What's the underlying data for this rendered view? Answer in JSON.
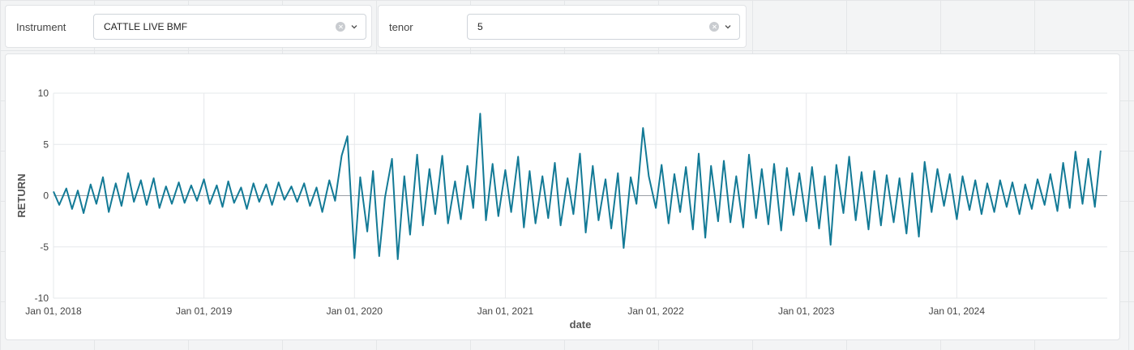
{
  "filters": {
    "instrument": {
      "label": "Instrument",
      "value": "CATTLE LIVE BMF"
    },
    "tenor": {
      "label": "tenor",
      "value": "5"
    }
  },
  "colors": {
    "series": "#137a96",
    "grid": "#e6e8eb",
    "zero_line": "#9aa0a6"
  },
  "chart_data": {
    "type": "line",
    "xlabel": "date",
    "ylabel": "RETURN",
    "ylim": [
      -10,
      10
    ],
    "yticks": [
      -10,
      -5,
      0,
      5,
      10
    ],
    "xlim": [
      "2018-01-01",
      "2024-12-31"
    ],
    "xticks": [
      {
        "date": "2018-01-01",
        "label": "Jan 01, 2018"
      },
      {
        "date": "2019-01-01",
        "label": "Jan 01, 2019"
      },
      {
        "date": "2020-01-01",
        "label": "Jan 01, 2020"
      },
      {
        "date": "2021-01-01",
        "label": "Jan 01, 2021"
      },
      {
        "date": "2022-01-01",
        "label": "Jan 01, 2022"
      },
      {
        "date": "2023-01-01",
        "label": "Jan 01, 2023"
      },
      {
        "date": "2024-01-01",
        "label": "Jan 01, 2024"
      }
    ],
    "grid": true,
    "series": [
      {
        "x": [
          "2018-01-01",
          "2018-01-15",
          "2018-02-01",
          "2018-02-15",
          "2018-03-01",
          "2018-03-15",
          "2018-04-01",
          "2018-04-15",
          "2018-05-01",
          "2018-05-15",
          "2018-06-01",
          "2018-06-15",
          "2018-07-01",
          "2018-07-15",
          "2018-08-01",
          "2018-08-15",
          "2018-09-01",
          "2018-09-15",
          "2018-10-01",
          "2018-10-15",
          "2018-11-01",
          "2018-11-15",
          "2018-12-01",
          "2018-12-15",
          "2019-01-01",
          "2019-01-15",
          "2019-02-01",
          "2019-02-15",
          "2019-03-01",
          "2019-03-15",
          "2019-04-01",
          "2019-04-15",
          "2019-05-01",
          "2019-05-15",
          "2019-06-01",
          "2019-06-15",
          "2019-07-01",
          "2019-07-15",
          "2019-08-01",
          "2019-08-15",
          "2019-09-01",
          "2019-09-15",
          "2019-10-01",
          "2019-10-15",
          "2019-11-01",
          "2019-11-15",
          "2019-12-01",
          "2019-12-15",
          "2020-01-01",
          "2020-01-15",
          "2020-02-01",
          "2020-02-15",
          "2020-03-01",
          "2020-03-15",
          "2020-04-01",
          "2020-04-15",
          "2020-05-01",
          "2020-05-15",
          "2020-06-01",
          "2020-06-15",
          "2020-07-01",
          "2020-07-15",
          "2020-08-01",
          "2020-08-15",
          "2020-09-01",
          "2020-09-15",
          "2020-10-01",
          "2020-10-15",
          "2020-11-01",
          "2020-11-15",
          "2020-12-01",
          "2020-12-15",
          "2021-01-01",
          "2021-01-15",
          "2021-02-01",
          "2021-02-15",
          "2021-03-01",
          "2021-03-15",
          "2021-04-01",
          "2021-04-15",
          "2021-05-01",
          "2021-05-15",
          "2021-06-01",
          "2021-06-15",
          "2021-07-01",
          "2021-07-15",
          "2021-08-01",
          "2021-08-15",
          "2021-09-01",
          "2021-09-15",
          "2021-10-01",
          "2021-10-15",
          "2021-11-01",
          "2021-11-15",
          "2021-12-01",
          "2021-12-15",
          "2022-01-01",
          "2022-01-15",
          "2022-02-01",
          "2022-02-15",
          "2022-03-01",
          "2022-03-15",
          "2022-04-01",
          "2022-04-15",
          "2022-05-01",
          "2022-05-15",
          "2022-06-01",
          "2022-06-15",
          "2022-07-01",
          "2022-07-15",
          "2022-08-01",
          "2022-08-15",
          "2022-09-01",
          "2022-09-15",
          "2022-10-01",
          "2022-10-15",
          "2022-11-01",
          "2022-11-15",
          "2022-12-01",
          "2022-12-15",
          "2023-01-01",
          "2023-01-15",
          "2023-02-01",
          "2023-02-15",
          "2023-03-01",
          "2023-03-15",
          "2023-04-01",
          "2023-04-15",
          "2023-05-01",
          "2023-05-15",
          "2023-06-01",
          "2023-06-15",
          "2023-07-01",
          "2023-07-15",
          "2023-08-01",
          "2023-08-15",
          "2023-09-01",
          "2023-09-15",
          "2023-10-01",
          "2023-10-15",
          "2023-11-01",
          "2023-11-15",
          "2023-12-01",
          "2023-12-15",
          "2024-01-01",
          "2024-01-15",
          "2024-02-01",
          "2024-02-15",
          "2024-03-01",
          "2024-03-15",
          "2024-04-01",
          "2024-04-15",
          "2024-05-01",
          "2024-05-15",
          "2024-06-01",
          "2024-06-15",
          "2024-07-01",
          "2024-07-15",
          "2024-08-01",
          "2024-08-15",
          "2024-09-01",
          "2024-09-15",
          "2024-10-01",
          "2024-10-15",
          "2024-11-01",
          "2024-11-15",
          "2024-12-01",
          "2024-12-15"
        ],
        "y": [
          0.4,
          -0.9,
          0.7,
          -1.3,
          0.5,
          -1.7,
          1.1,
          -0.8,
          1.8,
          -1.6,
          1.2,
          -1.0,
          2.2,
          -0.6,
          1.5,
          -0.9,
          1.7,
          -1.2,
          0.9,
          -0.8,
          1.3,
          -0.7,
          1.0,
          -0.5,
          1.6,
          -0.8,
          1.0,
          -1.1,
          1.4,
          -0.7,
          0.8,
          -1.3,
          1.2,
          -0.6,
          1.1,
          -0.9,
          1.3,
          -0.4,
          0.9,
          -0.6,
          1.2,
          -1.0,
          0.8,
          -1.6,
          1.5,
          -0.5,
          3.9,
          5.8,
          -6.1,
          1.8,
          -3.5,
          2.4,
          -5.9,
          -0.2,
          3.6,
          -6.2,
          1.9,
          -3.8,
          4.0,
          -2.9,
          2.6,
          -1.8,
          3.9,
          -2.7,
          1.4,
          -2.3,
          2.9,
          -1.2,
          8.0,
          -2.4,
          3.1,
          -2.0,
          2.5,
          -1.6,
          3.8,
          -3.1,
          2.4,
          -2.7,
          1.9,
          -2.2,
          3.2,
          -2.9,
          1.7,
          -1.8,
          4.1,
          -3.6,
          2.9,
          -2.4,
          1.6,
          -3.2,
          2.2,
          -5.1,
          1.8,
          -0.8,
          6.6,
          1.9,
          -1.2,
          3.0,
          -2.7,
          2.1,
          -1.6,
          2.8,
          -3.3,
          4.1,
          -4.1,
          2.9,
          -2.5,
          3.4,
          -2.6,
          1.9,
          -3.1,
          4.0,
          -2.2,
          2.6,
          -2.8,
          3.1,
          -3.4,
          2.7,
          -1.9,
          2.2,
          -2.5,
          2.8,
          -3.2,
          1.9,
          -4.8,
          3.0,
          -1.7,
          3.8,
          -2.4,
          2.3,
          -3.3,
          2.4,
          -2.9,
          2.0,
          -2.6,
          1.7,
          -3.7,
          2.2,
          -4.0,
          3.3,
          -1.6,
          2.6,
          -1.0,
          2.1,
          -2.3,
          1.9,
          -1.4,
          1.5,
          -1.8,
          1.2,
          -1.6,
          1.5,
          -1.1,
          1.3,
          -1.8,
          1.1,
          -1.3,
          1.6,
          -0.9,
          2.1,
          -1.5,
          3.2,
          -1.2,
          4.3,
          -0.8,
          3.6,
          -1.1,
          4.4
        ]
      }
    ]
  }
}
